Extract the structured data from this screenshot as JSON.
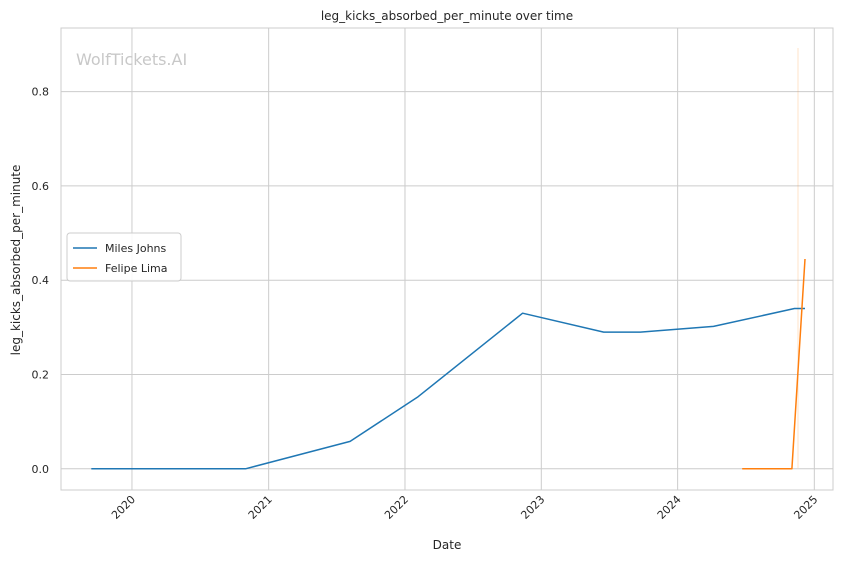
{
  "watermark": "WolfTickets.AI",
  "chart_data": {
    "type": "line",
    "title": "leg_kicks_absorbed_per_minute over time",
    "xlabel": "Date",
    "ylabel": "leg_kicks_absorbed_per_minute",
    "x_ticks": [
      "2020",
      "2021",
      "2022",
      "2023",
      "2024",
      "2025"
    ],
    "y_ticks": [
      "0.0",
      "0.2",
      "0.4",
      "0.6",
      "0.8"
    ],
    "xlim": [
      "2019-06-25",
      "2025-02-20"
    ],
    "ylim": [
      -0.045,
      0.935
    ],
    "grid": true,
    "legend": "center-left",
    "series": [
      {
        "name": "Miles Johns",
        "color": "#1f77b4",
        "points": [
          [
            "2019-09-14",
            0.0
          ],
          [
            "2020-10-31",
            0.0
          ],
          [
            "2021-08-07",
            0.058
          ],
          [
            "2022-02-05",
            0.153
          ],
          [
            "2022-11-12",
            0.33
          ],
          [
            "2023-06-17",
            0.29
          ],
          [
            "2023-09-23",
            0.29
          ],
          [
            "2024-04-06",
            0.302
          ],
          [
            "2024-11-09",
            0.34
          ],
          [
            "2024-12-07",
            0.34
          ]
        ]
      },
      {
        "name": "Felipe Lima",
        "color": "#ff7f0e",
        "points": [
          [
            "2024-06-22",
            0.0
          ],
          [
            "2024-11-02",
            0.0
          ],
          [
            "2024-12-07",
            0.445
          ]
        ]
      }
    ]
  }
}
